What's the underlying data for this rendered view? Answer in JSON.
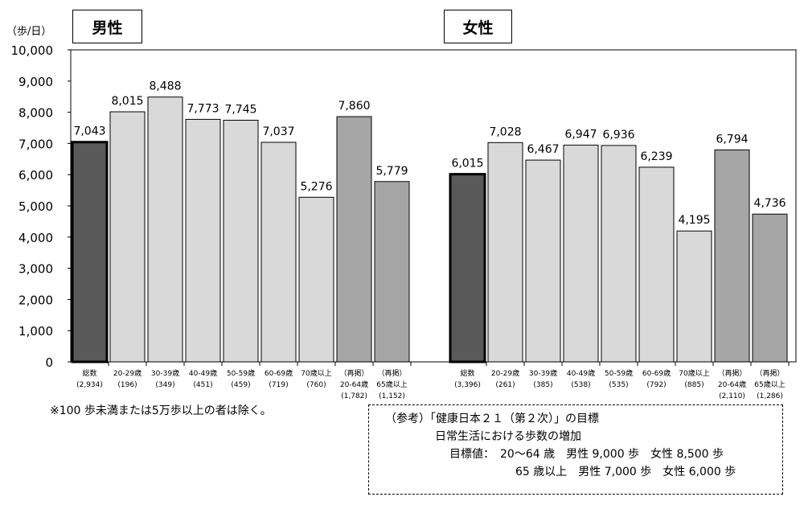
{
  "unit_label": "（歩/日）",
  "note": "※100 歩未満または5万歩以上の者は除く。",
  "reference": {
    "title": "（参考）「健康日本２１（第２次）」の目標",
    "line1": "日常生活における歩数の増加",
    "line2_label": "目標値：",
    "line2": "20～64 歳　男性 9,000 歩　女性 8,500 歩",
    "line3": "65 歳以上　男性 7,000 歩　女性 6,000 歩"
  },
  "colors": {
    "total": "#595959",
    "age": "#d9d9d9",
    "repost": "#a6a6a6"
  },
  "chart_data": {
    "type": "bar",
    "ylabel": "歩/日",
    "ylim": [
      0,
      10000
    ],
    "yticks": [
      "0",
      "1,000",
      "2,000",
      "3,000",
      "4,000",
      "5,000",
      "6,000",
      "7,000",
      "8,000",
      "9,000",
      "10,000"
    ],
    "groups": [
      {
        "name": "男性",
        "categories": [
          {
            "label": "総数",
            "n": "(2,934)",
            "kind": "total",
            "value": 7043,
            "value_label": "7,043"
          },
          {
            "label": "20-29歳",
            "n": "(196)",
            "kind": "age",
            "value": 8015,
            "value_label": "8,015"
          },
          {
            "label": "30-39歳",
            "n": "(349)",
            "kind": "age",
            "value": 8488,
            "value_label": "8,488"
          },
          {
            "label": "40-49歳",
            "n": "(451)",
            "kind": "age",
            "value": 7773,
            "value_label": "7,773"
          },
          {
            "label": "50-59歳",
            "n": "(459)",
            "kind": "age",
            "value": 7745,
            "value_label": "7,745"
          },
          {
            "label": "60-69歳",
            "n": "(719)",
            "kind": "age",
            "value": 7037,
            "value_label": "7,037"
          },
          {
            "label": "70歳以上",
            "n": "(760)",
            "kind": "age",
            "value": 5276,
            "value_label": "5,276"
          },
          {
            "label": "（再掲）",
            "label2": "20-64歳",
            "n": "(1,782)",
            "kind": "repost",
            "value": 7860,
            "value_label": "7,860"
          },
          {
            "label": "（再掲）",
            "label2": "65歳以上",
            "n": "(1,152)",
            "kind": "repost",
            "value": 5779,
            "value_label": "5,779"
          }
        ]
      },
      {
        "name": "女性",
        "categories": [
          {
            "label": "総数",
            "n": "(3,396)",
            "kind": "total",
            "value": 6015,
            "value_label": "6,015"
          },
          {
            "label": "20-29歳",
            "n": "(261)",
            "kind": "age",
            "value": 7028,
            "value_label": "7,028"
          },
          {
            "label": "30-39歳",
            "n": "(385)",
            "kind": "age",
            "value": 6467,
            "value_label": "6,467"
          },
          {
            "label": "40-49歳",
            "n": "(538)",
            "kind": "age",
            "value": 6947,
            "value_label": "6,947"
          },
          {
            "label": "50-59歳",
            "n": "(535)",
            "kind": "age",
            "value": 6936,
            "value_label": "6,936"
          },
          {
            "label": "60-69歳",
            "n": "(792)",
            "kind": "age",
            "value": 6239,
            "value_label": "6,239"
          },
          {
            "label": "70歳以上",
            "n": "(885)",
            "kind": "age",
            "value": 4195,
            "value_label": "4,195"
          },
          {
            "label": "（再掲）",
            "label2": "20-64歳",
            "n": "(2,110)",
            "kind": "repost",
            "value": 6794,
            "value_label": "6,794"
          },
          {
            "label": "（再掲）",
            "label2": "65歳以上",
            "n": "(1,286)",
            "kind": "repost",
            "value": 4736,
            "value_label": "4,736"
          }
        ]
      }
    ]
  }
}
